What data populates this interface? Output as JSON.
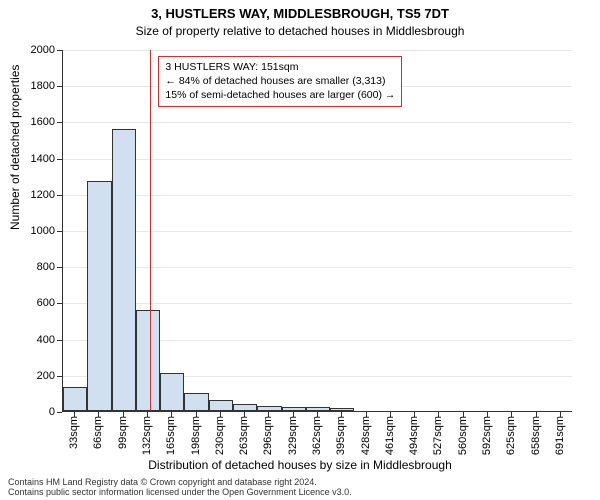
{
  "chart": {
    "type": "histogram",
    "title_main": "3, HUSTLERS WAY, MIDDLESBROUGH, TS5 7DT",
    "title_sub": "Size of property relative to detached houses in Middlesbrough",
    "ylabel": "Number of detached properties",
    "xlabel": "Distribution of detached houses by size in Middlesbrough",
    "ylim_max": 2000,
    "ytick_step": 200,
    "background_color": "#ffffff",
    "grid_color": "#e7e7e7",
    "axis_color": "#333333",
    "bar_fill": "#d1e0f1",
    "bar_border": "#333333",
    "ref_line_color": "#c93232",
    "ref_line_x_index": 3.6,
    "info_box": {
      "line1": "3 HUSTLERS WAY: 151sqm",
      "line2": "← 84% of detached houses are smaller (3,313)",
      "line3": "15% of semi-detached houses are larger (600) →"
    },
    "x_categories": [
      "33sqm",
      "66sqm",
      "99sqm",
      "132sqm",
      "165sqm",
      "198sqm",
      "230sqm",
      "263sqm",
      "296sqm",
      "329sqm",
      "362sqm",
      "395sqm",
      "428sqm",
      "461sqm",
      "494sqm",
      "527sqm",
      "560sqm",
      "592sqm",
      "625sqm",
      "658sqm",
      "691sqm"
    ],
    "values": [
      130,
      1270,
      1560,
      560,
      210,
      100,
      60,
      40,
      25,
      20,
      20,
      15,
      0,
      0,
      0,
      0,
      0,
      0,
      0,
      0,
      0
    ],
    "title_fontsize": 13,
    "subtitle_fontsize": 12,
    "label_fontsize": 12,
    "tick_fontsize": 11,
    "infobox_fontsize": 10.5
  },
  "footer": {
    "line1": "Contains HM Land Registry data © Crown copyright and database right 2024.",
    "line2": "Contains public sector information licensed under the Open Government Licence v3.0."
  }
}
